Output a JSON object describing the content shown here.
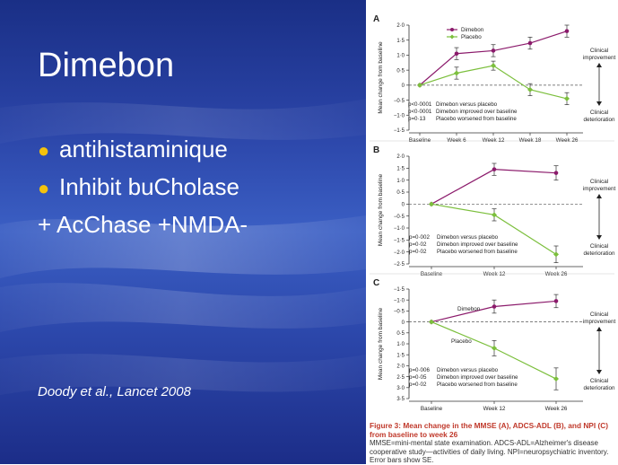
{
  "slide": {
    "title": "Dimebon",
    "bullets": [
      {
        "text": "antihistaminique",
        "bullet": true
      },
      {
        "text": "Inhibit buCholase",
        "bullet": true
      },
      {
        "text": "+ AcChase +NMDA-",
        "bullet": false
      }
    ],
    "citation": "Doody et al., Lancet 2008"
  },
  "colors": {
    "dimebon": "#8b1a6b",
    "placebo": "#7cbf3d",
    "axis": "#333333"
  },
  "figure": {
    "caption_title": "Figure 3: Mean change in the MMSE (A), ADCS-ADL (B), and NPI (C) from baseline to week 26",
    "caption_body": "MMSE=mini-mental state examination. ADCS-ADL=Alzheimer's disease cooperative study—activities of daily living. NPI=neuropsychiatric inventory. Error bars show SE."
  },
  "chart_data": [
    {
      "type": "line",
      "panel": "A",
      "ylabel": "Mean change from baseline",
      "categories": [
        "Baseline",
        "Week 6",
        "Week 12",
        "Week 18",
        "Week 26"
      ],
      "yticks": [
        "2·0",
        "1·5",
        "1·0",
        "0·5",
        "0",
        "−0·5",
        "−1·0",
        "−1·5"
      ],
      "ylim": [
        -1.5,
        2.0
      ],
      "series": [
        {
          "name": "Dimebon",
          "values": [
            0,
            1.05,
            1.15,
            1.4,
            1.8
          ],
          "err": [
            0,
            0.2,
            0.2,
            0.2,
            0.2
          ],
          "color": "#8b1a6b"
        },
        {
          "name": "Placebo",
          "values": [
            0,
            0.4,
            0.65,
            -0.15,
            -0.45
          ],
          "err": [
            0,
            0.2,
            0.15,
            0.2,
            0.2
          ],
          "color": "#7cbf3d"
        }
      ],
      "annotations": [
        "Clinical improvement",
        "Clinical deterioration"
      ],
      "stats": [
        "p<0·0001",
        "p<0·0001",
        "p=0·13"
      ],
      "stat_labels": [
        "Dimebon versus placebo",
        "Dimebon improved over baseline",
        "Placebo worsened from baseline"
      ]
    },
    {
      "type": "line",
      "panel": "B",
      "ylabel": "Mean change from baseline",
      "categories": [
        "Baseline",
        "Week 12",
        "Week 26"
      ],
      "yticks": [
        "2·0",
        "1·5",
        "1·0",
        "0·5",
        "0",
        "−0·5",
        "−1·0",
        "−1·5",
        "−2·0",
        "−2·5"
      ],
      "ylim": [
        -2.5,
        2.0
      ],
      "series": [
        {
          "name": "",
          "values": [
            0,
            1.45,
            1.3
          ],
          "err": [
            0,
            0.25,
            0.3
          ],
          "color": "#8b1a6b"
        },
        {
          "name": "",
          "values": [
            0,
            -0.45,
            -2.1
          ],
          "err": [
            0,
            0.25,
            0.35
          ],
          "color": "#7cbf3d"
        }
      ],
      "annotations": [
        "Clinical improvement",
        "Clinical deterioration"
      ],
      "stats": [
        "p=0·002",
        "p=0·02",
        "p=0·02"
      ],
      "stat_labels": [
        "Dimebon versus placebo",
        "Dimebon improved over baseline",
        "Placebo worsened from baseline"
      ]
    },
    {
      "type": "line",
      "panel": "C",
      "ylabel": "Mean change from baseline",
      "categories": [
        "Baseline",
        "Week 12",
        "Week 26"
      ],
      "yticks": [
        "−1·5",
        "−1·0",
        "−0·5",
        "0",
        "0·5",
        "1·0",
        "1·5",
        "2·0",
        "2·5",
        "3·0",
        "3·5"
      ],
      "ylim": [
        3.5,
        -1.5
      ],
      "series": [
        {
          "name": "Dimebon",
          "values": [
            0,
            -0.7,
            -0.95
          ],
          "err": [
            0,
            0.3,
            0.3
          ],
          "color": "#8b1a6b"
        },
        {
          "name": "Placebo",
          "values": [
            0,
            1.2,
            2.6
          ],
          "err": [
            0,
            0.35,
            0.5
          ],
          "color": "#7cbf3d"
        }
      ],
      "annotations": [
        "Clinical improvement",
        "Clinical deterioration"
      ],
      "stats": [
        "p=0·006",
        "p=0·05",
        "p=0·02"
      ],
      "stat_labels": [
        "Dimebon versus placebo",
        "Dimebon improved over baseline",
        "Placebo worsened from baseline"
      ]
    }
  ]
}
